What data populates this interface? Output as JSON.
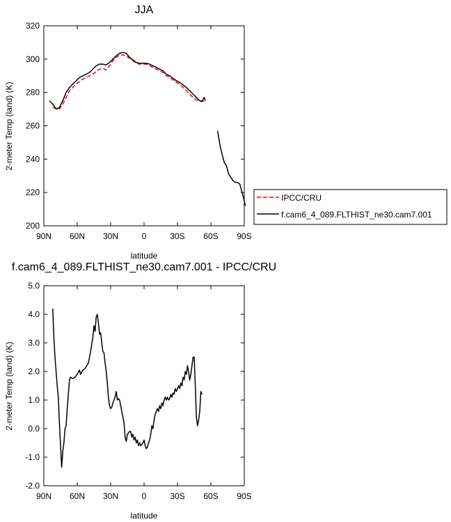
{
  "chart_data": [
    {
      "type": "line",
      "title": "JJA",
      "xlabel": "latitude",
      "ylabel": "2-meter Temp (land) (K)",
      "xlim": [
        90,
        -90
      ],
      "ylim": [
        200,
        320
      ],
      "xticks": [
        90,
        60,
        30,
        0,
        -30,
        -60,
        -90
      ],
      "xticklabels": [
        "90N",
        "60N",
        "30N",
        "0",
        "30S",
        "60S",
        "90S"
      ],
      "yticks": [
        200,
        220,
        240,
        260,
        280,
        300,
        320
      ],
      "yticklabels": [
        "200",
        "220",
        "240",
        "260",
        "280",
        "300",
        "320"
      ],
      "grid": false,
      "legend_position": "right",
      "series": [
        {
          "name": "IPCC/CRU",
          "color": "#ff0000",
          "style": "dashed",
          "points": [
            [
              82,
              271
            ],
            [
              79,
              270.5
            ],
            [
              76,
              270
            ],
            [
              73,
              273
            ],
            [
              70,
              277
            ],
            [
              67,
              281
            ],
            [
              64,
              283
            ],
            [
              61,
              285
            ],
            [
              58,
              286.5
            ],
            [
              55,
              288
            ],
            [
              52,
              289
            ],
            [
              49,
              290
            ],
            [
              46,
              291
            ],
            [
              43,
              292.5
            ],
            [
              40,
              294
            ],
            [
              37,
              294.5
            ],
            [
              34,
              293.5
            ],
            [
              31,
              296
            ],
            [
              28,
              299
            ],
            [
              25,
              301
            ],
            [
              22,
              302.5
            ],
            [
              19,
              302.5
            ],
            [
              16,
              302
            ],
            [
              13,
              300.5
            ],
            [
              10,
              299
            ],
            [
              7,
              297.5
            ],
            [
              4,
              297
            ],
            [
              1,
              297
            ],
            [
              -2,
              297
            ],
            [
              -5,
              296
            ],
            [
              -8,
              295
            ],
            [
              -11,
              294
            ],
            [
              -14,
              293
            ],
            [
              -17,
              292
            ],
            [
              -20,
              290
            ],
            [
              -23,
              289
            ],
            [
              -26,
              287.5
            ],
            [
              -29,
              286
            ],
            [
              -32,
              285
            ],
            [
              -35,
              283
            ],
            [
              -38,
              281
            ],
            [
              -41,
              279
            ],
            [
              -44,
              277
            ],
            [
              -47,
              275.5
            ],
            [
              -50,
              275
            ],
            [
              -53,
              275
            ],
            [
              -55,
              274
            ]
          ]
        },
        {
          "name": "f.cam6_4_089.FLTHIST_ne30.cam7.001",
          "color": "#000000",
          "style": "solid",
          "points": [
            [
              85,
              275
            ],
            [
              82,
              273
            ],
            [
              79,
              270
            ],
            [
              76,
              271
            ],
            [
              73,
              275
            ],
            [
              70,
              280
            ],
            [
              67,
              283
            ],
            [
              64,
              285
            ],
            [
              61,
              287
            ],
            [
              58,
              289
            ],
            [
              55,
              290
            ],
            [
              52,
              291
            ],
            [
              49,
              292
            ],
            [
              46,
              294
            ],
            [
              43,
              296
            ],
            [
              40,
              297
            ],
            [
              37,
              297
            ],
            [
              34,
              296.5
            ],
            [
              31,
              298
            ],
            [
              28,
              300
            ],
            [
              25,
              302
            ],
            [
              22,
              303.5
            ],
            [
              19,
              304
            ],
            [
              16,
              303.5
            ],
            [
              13,
              301
            ],
            [
              10,
              299.5
            ],
            [
              7,
              298
            ],
            [
              4,
              297.5
            ],
            [
              1,
              297.5
            ],
            [
              -2,
              297.5
            ],
            [
              -5,
              297
            ],
            [
              -8,
              296
            ],
            [
              -11,
              295
            ],
            [
              -14,
              294
            ],
            [
              -17,
              293
            ],
            [
              -20,
              291
            ],
            [
              -23,
              290
            ],
            [
              -26,
              288.5
            ],
            [
              -29,
              287
            ],
            [
              -32,
              286
            ],
            [
              -35,
              284.5
            ],
            [
              -38,
              283
            ],
            [
              -41,
              281
            ],
            [
              -44,
              279
            ],
            [
              -47,
              277
            ],
            [
              -50,
              275
            ],
            [
              -52,
              274.5
            ],
            [
              -54,
              277
            ],
            [
              -55,
              275
            ]
          ],
          "points_segment2": [
            [
              -66,
              257
            ],
            [
              -68,
              249
            ],
            [
              -70,
              243
            ],
            [
              -72,
              238
            ],
            [
              -74,
              236
            ],
            [
              -76,
              231
            ],
            [
              -78,
              229
            ],
            [
              -80,
              227
            ],
            [
              -82,
              226
            ],
            [
              -84,
              226
            ],
            [
              -86,
              225
            ],
            [
              -88,
              220
            ],
            [
              -90,
              215
            ],
            [
              -91,
              212
            ]
          ]
        }
      ]
    },
    {
      "type": "line",
      "title": "f.cam6_4_089.FLTHIST_ne30.cam7.001 - IPCC/CRU",
      "xlabel": "latitude",
      "ylabel": "2-meter Temp (land) (K)",
      "xlim": [
        90,
        -90
      ],
      "ylim": [
        -2,
        5
      ],
      "xticks": [
        90,
        60,
        30,
        0,
        -30,
        -60,
        -90
      ],
      "xticklabels": [
        "90N",
        "60N",
        "30N",
        "0",
        "30S",
        "60S",
        "90S"
      ],
      "yticks": [
        -2,
        -1,
        0,
        1,
        2,
        3,
        4,
        5
      ],
      "yticklabels": [
        "-2.0",
        "-1.0",
        "0.0",
        "1.0",
        "2.0",
        "3.0",
        "4.0",
        "5.0"
      ],
      "grid": false,
      "series": [
        {
          "color": "#000000",
          "style": "solid",
          "points": [
            [
              82,
              4.2
            ],
            [
              81,
              3.2
            ],
            [
              80,
              2.5
            ],
            [
              78,
              1.5
            ],
            [
              77,
              1.1
            ],
            [
              76,
              0.2
            ],
            [
              75,
              -0.6
            ],
            [
              74,
              -1.35
            ],
            [
              73,
              -0.8
            ],
            [
              72,
              -0.5
            ],
            [
              71,
              0.0
            ],
            [
              70,
              0.1
            ],
            [
              69,
              0.7
            ],
            [
              68,
              1.2
            ],
            [
              67,
              1.7
            ],
            [
              66,
              1.8
            ],
            [
              64,
              1.75
            ],
            [
              62,
              1.8
            ],
            [
              60,
              1.9
            ],
            [
              58,
              2.05
            ],
            [
              57,
              1.9
            ],
            [
              55,
              2.05
            ],
            [
              53,
              2.1
            ],
            [
              50,
              2.3
            ],
            [
              48,
              2.7
            ],
            [
              46,
              3.2
            ],
            [
              45,
              3.6
            ],
            [
              44,
              3.4
            ],
            [
              43,
              3.9
            ],
            [
              42,
              4.0
            ],
            [
              41,
              3.7
            ],
            [
              40,
              3.3
            ],
            [
              39,
              3.35
            ],
            [
              38,
              3.0
            ],
            [
              37,
              2.7
            ],
            [
              36,
              2.65
            ],
            [
              35,
              2.3
            ],
            [
              34,
              2.0
            ],
            [
              33,
              1.6
            ],
            [
              32,
              1.1
            ],
            [
              31,
              0.8
            ],
            [
              30,
              0.7
            ],
            [
              29,
              0.75
            ],
            [
              28,
              0.9
            ],
            [
              27,
              1.0
            ],
            [
              26,
              1.1
            ],
            [
              25,
              1.3
            ],
            [
              24,
              1.0
            ],
            [
              23,
              1.05
            ],
            [
              22,
              1.0
            ],
            [
              21,
              0.8
            ],
            [
              20,
              0.6
            ],
            [
              19,
              0.4
            ],
            [
              18,
              0.2
            ],
            [
              17,
              -0.3
            ],
            [
              16,
              -0.45
            ],
            [
              15,
              -0.2
            ],
            [
              14,
              -0.15
            ],
            [
              13,
              -0.1
            ],
            [
              12,
              -0.1
            ],
            [
              11,
              -0.3
            ],
            [
              10,
              -0.2
            ],
            [
              9,
              -0.4
            ],
            [
              8,
              -0.3
            ],
            [
              7,
              -0.5
            ],
            [
              6,
              -0.4
            ],
            [
              5,
              -0.6
            ],
            [
              4,
              -0.5
            ],
            [
              3,
              -0.6
            ],
            [
              2,
              -0.55
            ],
            [
              1,
              -0.5
            ],
            [
              0,
              -0.4
            ],
            [
              -1,
              -0.6
            ],
            [
              -2,
              -0.7
            ],
            [
              -3,
              -0.65
            ],
            [
              -4,
              -0.5
            ],
            [
              -5,
              -0.4
            ],
            [
              -6,
              -0.2
            ],
            [
              -7,
              0.1
            ],
            [
              -8,
              0.0
            ],
            [
              -9,
              0.3
            ],
            [
              -10,
              0.5
            ],
            [
              -11,
              0.6
            ],
            [
              -12,
              0.7
            ],
            [
              -13,
              0.6
            ],
            [
              -14,
              0.8
            ],
            [
              -15,
              0.7
            ],
            [
              -16,
              0.9
            ],
            [
              -17,
              0.8
            ],
            [
              -18,
              1.0
            ],
            [
              -19,
              1.1
            ],
            [
              -20,
              1.0
            ],
            [
              -21,
              1.1
            ],
            [
              -22,
              1.0
            ],
            [
              -23,
              1.05
            ],
            [
              -24,
              1.2
            ],
            [
              -25,
              1.1
            ],
            [
              -26,
              1.25
            ],
            [
              -27,
              1.2
            ],
            [
              -28,
              1.4
            ],
            [
              -29,
              1.3
            ],
            [
              -30,
              1.4
            ],
            [
              -31,
              1.5
            ],
            [
              -32,
              1.4
            ],
            [
              -33,
              1.6
            ],
            [
              -34,
              1.5
            ],
            [
              -35,
              1.8
            ],
            [
              -36,
              1.7
            ],
            [
              -37,
              2.0
            ],
            [
              -38,
              1.9
            ],
            [
              -39,
              2.2
            ],
            [
              -40,
              2.0
            ],
            [
              -41,
              1.7
            ],
            [
              -42,
              1.9
            ],
            [
              -43,
              2.2
            ],
            [
              -44,
              2.5
            ],
            [
              -45,
              2.5
            ],
            [
              -46,
              1.5
            ],
            [
              -47,
              0.4
            ],
            [
              -48,
              0.1
            ],
            [
              -49,
              0.3
            ],
            [
              -50,
              0.6
            ],
            [
              -51,
              1.3
            ],
            [
              -52,
              1.2
            ]
          ]
        }
      ]
    }
  ]
}
